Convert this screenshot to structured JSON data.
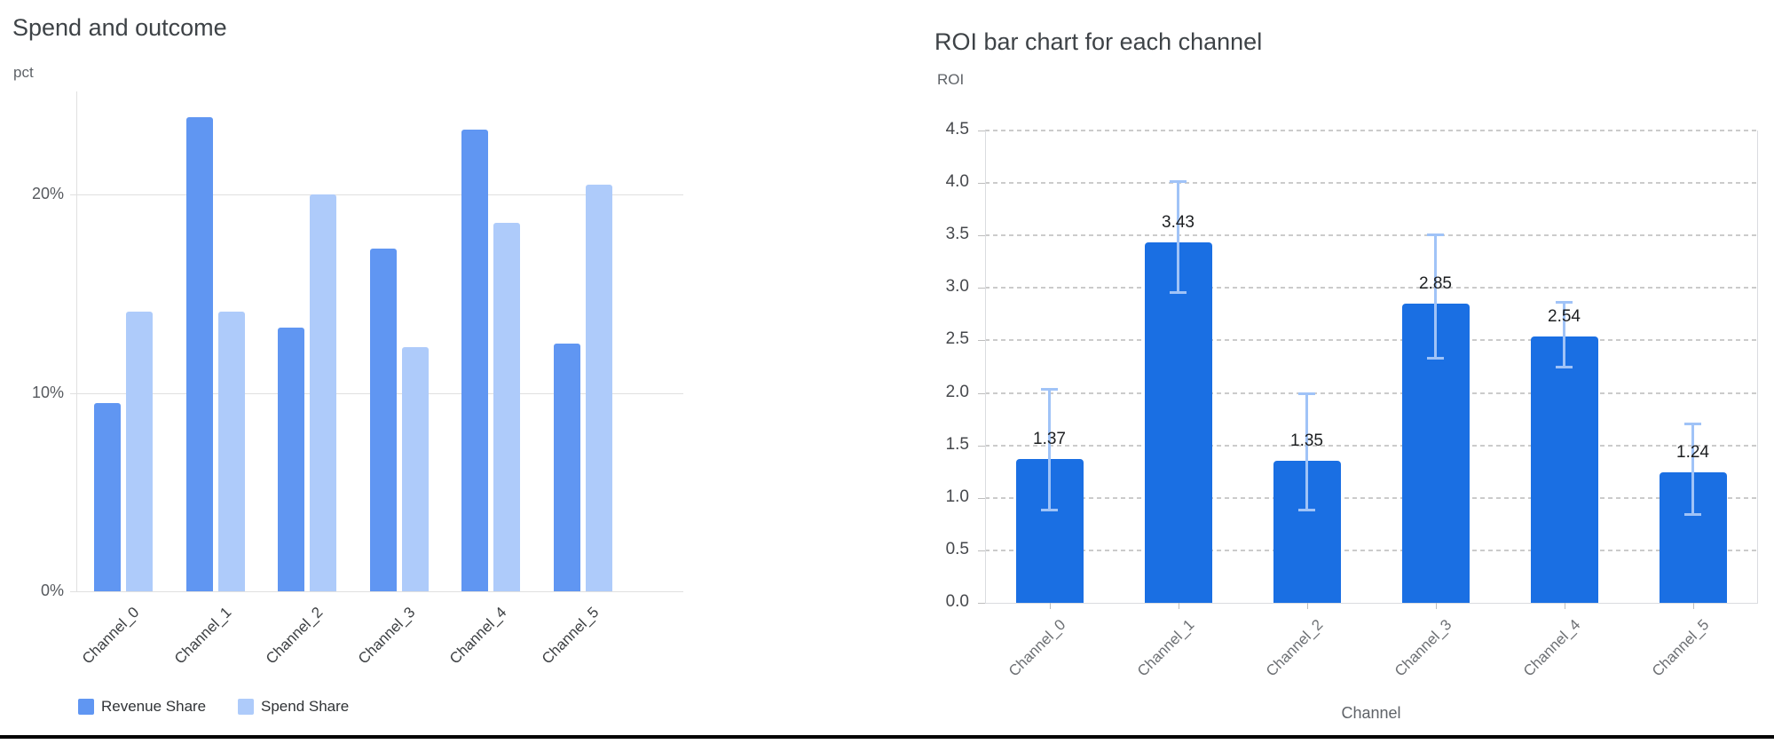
{
  "page": {
    "background": "#ffffff",
    "bottom_divider_color": "#000000"
  },
  "chart_data": [
    {
      "type": "bar",
      "title": "Spend and outcome",
      "ylabel": "pct",
      "xlabel": "",
      "categories": [
        "Channel_0",
        "Channel_1",
        "Channel_2",
        "Channel_3",
        "Channel_4",
        "Channel_5"
      ],
      "series": [
        {
          "name": "Revenue Share",
          "color": "#6096f2",
          "values": [
            9.5,
            23.9,
            13.3,
            17.3,
            23.3,
            12.5
          ]
        },
        {
          "name": "Spend Share",
          "color": "#aecbfa",
          "values": [
            14.1,
            14.1,
            20.0,
            12.3,
            18.6,
            20.5
          ]
        }
      ],
      "y_ticks": [
        "0%",
        "10%",
        "20%"
      ],
      "y_tick_values": [
        0,
        10,
        20
      ],
      "ylim": [
        0,
        25.2
      ],
      "grid": "horizontal-solid",
      "gridline_color": "#e0e0e0",
      "legend_position": "bottom"
    },
    {
      "type": "bar",
      "title": "ROI bar chart for each channel",
      "ylabel": "ROI",
      "xlabel": "Channel",
      "categories": [
        "Channel_0",
        "Channel_1",
        "Channel_2",
        "Channel_3",
        "Channel_4",
        "Channel_5"
      ],
      "series": [
        {
          "name": "ROI",
          "color": "#1a6fe3",
          "values": [
            1.37,
            3.43,
            1.35,
            2.85,
            2.54,
            1.24
          ]
        }
      ],
      "value_labels": [
        "1.37",
        "3.43",
        "1.35",
        "2.85",
        "2.54",
        "1.24"
      ],
      "error_bars": {
        "color": "#a0c3f7",
        "low": [
          0.88,
          2.95,
          0.88,
          2.33,
          2.24,
          0.84
        ],
        "high": [
          2.04,
          4.02,
          2.0,
          3.51,
          2.87,
          1.71
        ]
      },
      "y_ticks": [
        "0.0",
        "0.5",
        "1.0",
        "1.5",
        "2.0",
        "2.5",
        "3.0",
        "3.5",
        "4.0",
        "4.5"
      ],
      "y_tick_values": [
        0,
        0.5,
        1.0,
        1.5,
        2.0,
        2.5,
        3.0,
        3.5,
        4.0,
        4.5
      ],
      "ylim": [
        0,
        4.5
      ],
      "grid": "horizontal-dashed",
      "gridline_color": "#cbcbcb",
      "box_border_color": "#dadce0",
      "legend_position": "none"
    }
  ]
}
